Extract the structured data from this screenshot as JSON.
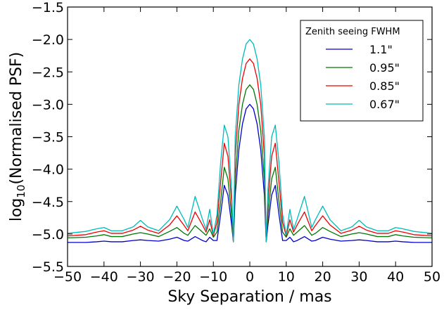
{
  "chart_data": {
    "type": "line",
    "xlabel": "Sky Separation / mas",
    "ylabel_base": "log",
    "ylabel_sub": "10",
    "ylabel_rest": "(Normalised PSF)",
    "xlim": [
      -50,
      50
    ],
    "ylim": [
      -5.5,
      -1.5
    ],
    "xticks": [
      -50,
      -40,
      -30,
      -20,
      -10,
      0,
      10,
      20,
      30,
      40,
      50
    ],
    "xtick_labels": [
      "−50",
      "−40",
      "−30",
      "−20",
      "−10",
      "0",
      "10",
      "20",
      "30",
      "40",
      "50"
    ],
    "yticks": [
      -5.5,
      -5.0,
      -4.5,
      -4.0,
      -3.5,
      -3.0,
      -2.5,
      -2.0,
      -1.5
    ],
    "ytick_labels": [
      "−5.5",
      "−5.0",
      "−4.5",
      "−4.0",
      "−3.5",
      "−3.0",
      "−2.5",
      "−2.0",
      "−1.5"
    ],
    "grid": false,
    "legend": {
      "title": "Zenith seeing FWHM",
      "placement": "top-right"
    },
    "series": [
      {
        "name": "1.1\"",
        "color": "#0000cc",
        "x": [
          -50,
          -45,
          -42,
          -40,
          -38,
          -35,
          -32,
          -30,
          -28,
          -25,
          -22,
          -20,
          -18,
          -17,
          -15,
          -13,
          -12,
          -11,
          -10,
          -9,
          -8,
          -7,
          -6,
          -5,
          -4.5,
          -4,
          -3,
          -2,
          -1,
          0,
          1,
          2,
          3,
          4,
          4.5,
          5,
          6,
          7,
          8,
          9,
          10,
          11,
          12,
          13,
          15,
          17,
          18,
          20,
          22,
          25,
          28,
          30,
          32,
          35,
          38,
          40,
          42,
          45,
          50
        ],
        "y": [
          -5.13,
          -5.13,
          -5.12,
          -5.11,
          -5.12,
          -5.12,
          -5.1,
          -5.09,
          -5.1,
          -5.11,
          -5.08,
          -5.05,
          -5.1,
          -5.11,
          -5.04,
          -5.1,
          -5.12,
          -5.05,
          -5.1,
          -5.1,
          -4.7,
          -4.25,
          -4.4,
          -4.85,
          -5.12,
          -4.4,
          -3.7,
          -3.3,
          -3.07,
          -3.0,
          -3.07,
          -3.3,
          -3.7,
          -4.4,
          -5.12,
          -4.85,
          -4.4,
          -4.25,
          -4.7,
          -5.1,
          -5.1,
          -5.05,
          -5.12,
          -5.1,
          -5.04,
          -5.11,
          -5.1,
          -5.05,
          -5.08,
          -5.11,
          -5.1,
          -5.09,
          -5.1,
          -5.12,
          -5.12,
          -5.11,
          -5.12,
          -5.13,
          -5.13
        ]
      },
      {
        "name": "0.95\"",
        "color": "#007700",
        "x": [
          -50,
          -45,
          -42,
          -40,
          -38,
          -35,
          -32,
          -30,
          -28,
          -25,
          -22,
          -20,
          -18,
          -17,
          -15,
          -13,
          -12,
          -11,
          -10,
          -9,
          -8,
          -7,
          -6,
          -5,
          -4.5,
          -4,
          -3,
          -2,
          -1,
          0,
          1,
          2,
          3,
          4,
          4.5,
          5,
          6,
          7,
          8,
          9,
          10,
          11,
          12,
          13,
          15,
          17,
          18,
          20,
          22,
          25,
          28,
          30,
          32,
          35,
          38,
          40,
          42,
          45,
          50
        ],
        "y": [
          -5.06,
          -5.05,
          -5.03,
          -5.01,
          -5.04,
          -5.04,
          -5.0,
          -4.98,
          -5.0,
          -5.04,
          -4.96,
          -4.9,
          -4.99,
          -5.02,
          -4.87,
          -4.97,
          -5.02,
          -4.92,
          -5.05,
          -4.97,
          -4.5,
          -3.97,
          -4.15,
          -4.7,
          -5.12,
          -4.15,
          -3.4,
          -3.0,
          -2.77,
          -2.7,
          -2.77,
          -3.0,
          -3.4,
          -4.15,
          -5.12,
          -4.7,
          -4.15,
          -3.97,
          -4.5,
          -4.97,
          -5.05,
          -4.92,
          -5.02,
          -4.97,
          -4.87,
          -5.02,
          -4.99,
          -4.9,
          -4.96,
          -5.04,
          -5.0,
          -4.98,
          -5.0,
          -5.04,
          -5.04,
          -5.01,
          -5.03,
          -5.05,
          -5.06
        ]
      },
      {
        "name": "0.85\"",
        "color": "#ee0000",
        "x": [
          -50,
          -45,
          -42,
          -40,
          -38,
          -35,
          -32,
          -30,
          -28,
          -25,
          -22,
          -20,
          -18,
          -17,
          -15,
          -13,
          -12,
          -11,
          -10,
          -9,
          -8,
          -7,
          -6,
          -5,
          -4.5,
          -4,
          -3,
          -2,
          -1,
          0,
          1,
          2,
          3,
          4,
          4.5,
          5,
          6,
          7,
          8,
          9,
          10,
          11,
          12,
          13,
          15,
          17,
          18,
          20,
          22,
          25,
          28,
          30,
          32,
          35,
          38,
          40,
          42,
          45,
          50
        ],
        "y": [
          -5.03,
          -5.01,
          -4.97,
          -4.95,
          -4.99,
          -4.99,
          -4.94,
          -4.88,
          -4.94,
          -4.99,
          -4.86,
          -4.72,
          -4.87,
          -4.95,
          -4.66,
          -4.86,
          -4.97,
          -4.78,
          -5.03,
          -4.82,
          -4.2,
          -3.6,
          -3.8,
          -4.5,
          -5.12,
          -3.8,
          -3.0,
          -2.6,
          -2.37,
          -2.3,
          -2.37,
          -2.6,
          -3.0,
          -3.8,
          -5.12,
          -4.5,
          -3.8,
          -3.6,
          -4.2,
          -4.82,
          -5.03,
          -4.78,
          -4.97,
          -4.86,
          -4.66,
          -4.95,
          -4.87,
          -4.72,
          -4.86,
          -4.99,
          -4.94,
          -4.88,
          -4.94,
          -4.99,
          -4.99,
          -4.95,
          -4.97,
          -5.01,
          -5.03
        ]
      },
      {
        "name": "0.67\"",
        "color": "#00bbbb",
        "x": [
          -50,
          -45,
          -42,
          -40,
          -38,
          -35,
          -32,
          -30,
          -28,
          -25,
          -22,
          -20,
          -18,
          -17,
          -15,
          -13,
          -12,
          -11,
          -10,
          -9,
          -8,
          -7,
          -6,
          -5,
          -4.5,
          -4,
          -3,
          -2,
          -1,
          0,
          1,
          2,
          3,
          4,
          4.5,
          5,
          6,
          7,
          8,
          9,
          10,
          11,
          12,
          13,
          15,
          17,
          18,
          20,
          22,
          25,
          28,
          30,
          32,
          35,
          38,
          40,
          42,
          45,
          50
        ],
        "y": [
          -4.99,
          -4.96,
          -4.92,
          -4.9,
          -4.95,
          -4.95,
          -4.89,
          -4.79,
          -4.89,
          -4.95,
          -4.78,
          -4.57,
          -4.78,
          -4.9,
          -4.42,
          -4.77,
          -4.93,
          -4.62,
          -5.01,
          -4.7,
          -3.9,
          -3.32,
          -3.5,
          -4.3,
          -5.12,
          -3.5,
          -2.7,
          -2.3,
          -2.07,
          -2.0,
          -2.07,
          -2.3,
          -2.7,
          -3.5,
          -5.12,
          -4.3,
          -3.5,
          -3.32,
          -3.9,
          -4.7,
          -5.01,
          -4.62,
          -4.93,
          -4.77,
          -4.42,
          -4.9,
          -4.78,
          -4.57,
          -4.78,
          -4.95,
          -4.89,
          -4.79,
          -4.89,
          -4.95,
          -4.95,
          -4.9,
          -4.92,
          -4.96,
          -4.99
        ]
      }
    ]
  }
}
